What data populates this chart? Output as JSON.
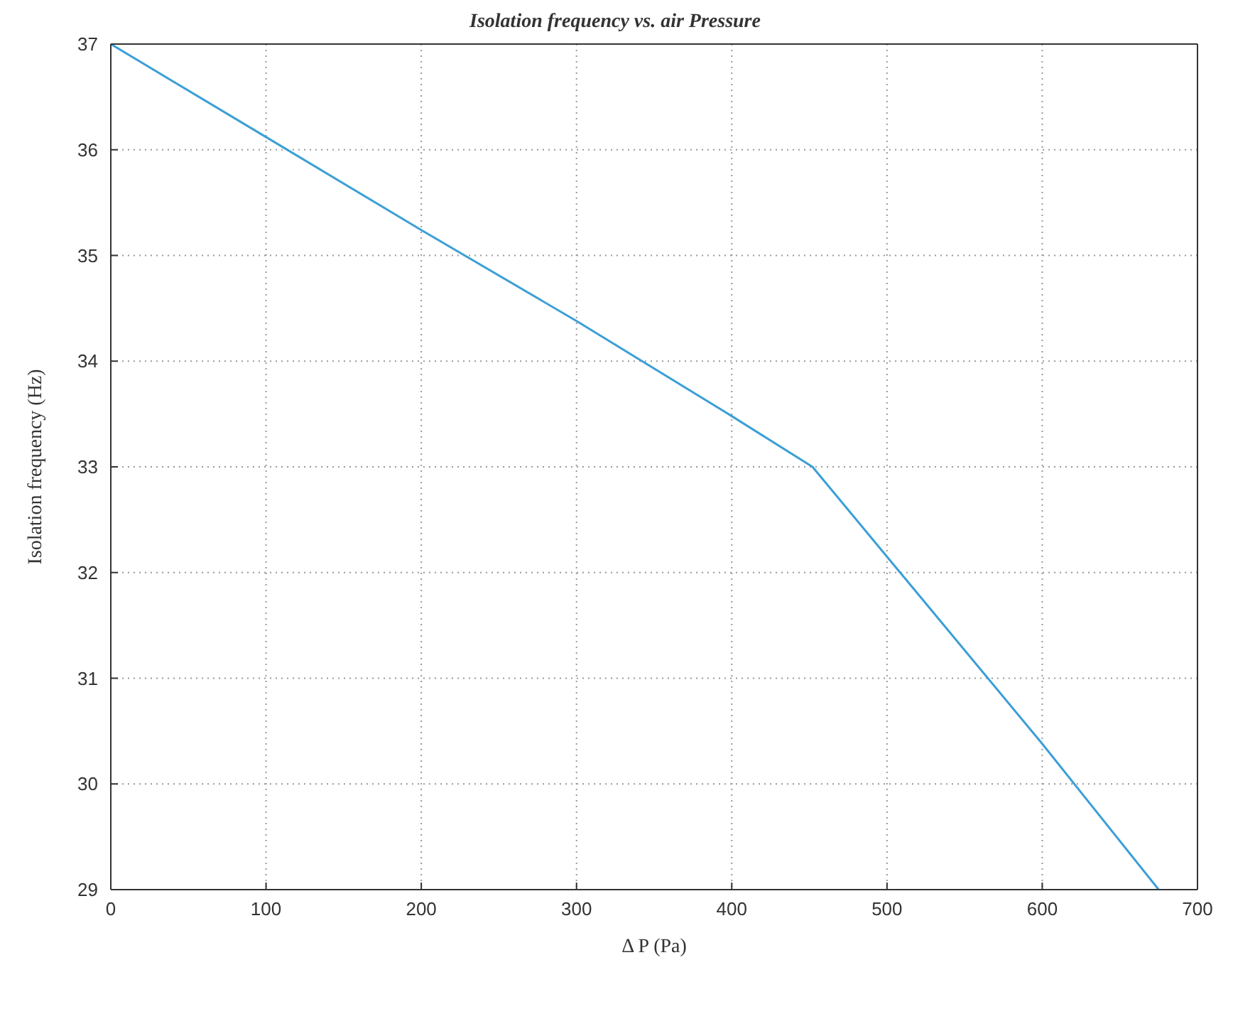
{
  "chart_data": {
    "type": "line",
    "title": "Isolation frequency vs. air Pressure",
    "xlabel": "Δ P (Pa)",
    "ylabel": "Isolation frequency (Hz)",
    "x": [
      0,
      100,
      200,
      300,
      400,
      452,
      500,
      600,
      675
    ],
    "series": [
      {
        "color": "#3b9fd6",
        "values": [
          37,
          36.12,
          35.24,
          34.38,
          33.48,
          33,
          32.15,
          30.38,
          29
        ]
      }
    ],
    "xlim": [
      0,
      700
    ],
    "xticks": [
      0,
      100,
      200,
      300,
      400,
      500,
      600,
      700
    ],
    "ylim": [
      29,
      37
    ],
    "yticks": [
      29,
      30,
      31,
      32,
      33,
      34,
      35,
      36,
      37
    ],
    "grid": true,
    "marker": "none",
    "line_style": "solid",
    "legend": false
  }
}
